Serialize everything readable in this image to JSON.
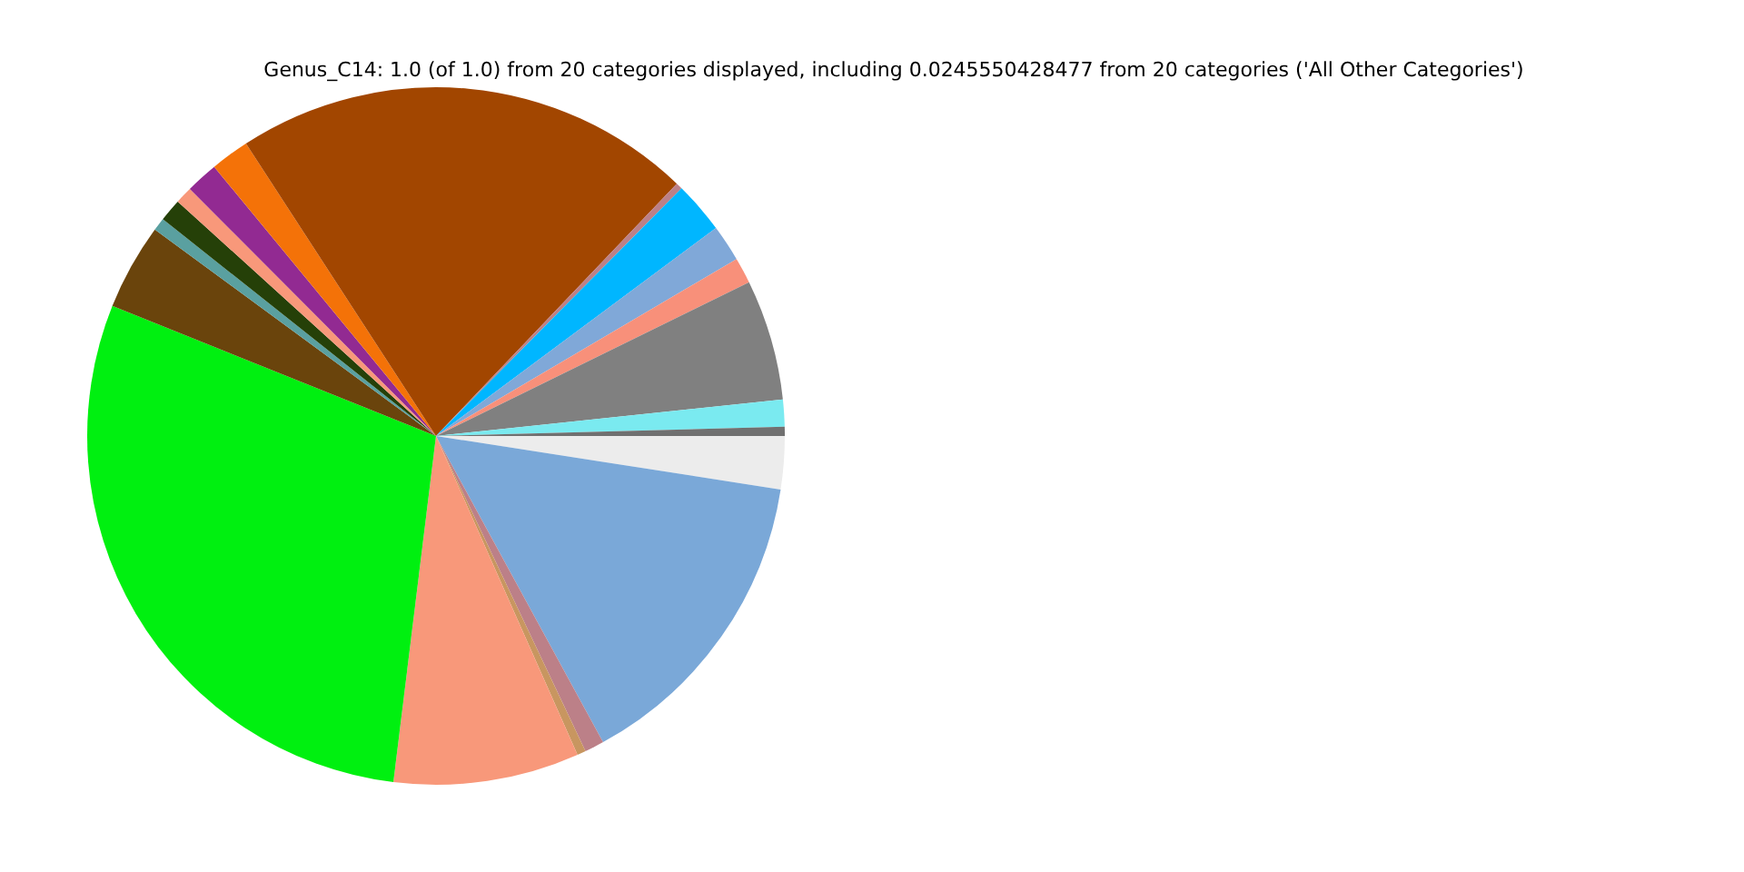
{
  "chart_data": {
    "type": "pie",
    "title": "Genus_C14: 1.0 (of 1.0) from 20 categories displayed, including 0.0245550428477 from 20 categories ('All Other Categories')",
    "categories": [
      null,
      null,
      null,
      null,
      null,
      null,
      null,
      null,
      null,
      null,
      null,
      null,
      null,
      null,
      null,
      null,
      null,
      null,
      null,
      null
    ],
    "values": [
      2.45,
      14.6,
      0.9,
      0.4,
      8.6,
      29.13,
      4.0,
      0.6,
      1.05,
      0.8,
      1.5,
      1.8,
      21.3,
      0.3,
      2.4,
      1.7,
      1.2,
      5.6,
      1.25,
      0.42
    ],
    "colors": [
      "#ececec",
      "#7aa8d8",
      "#bc8088",
      "#c89660",
      "#f8987a",
      "#00f010",
      "#6a440c",
      "#5aa0a0",
      "#254008",
      "#f8987a",
      "#922a92",
      "#f47208",
      "#a24600",
      "#bc8088",
      "#00b6ff",
      "#80a8d8",
      "#f8907a",
      "#808080",
      "#7aeaf0",
      "#707070"
    ],
    "legend": false
  }
}
